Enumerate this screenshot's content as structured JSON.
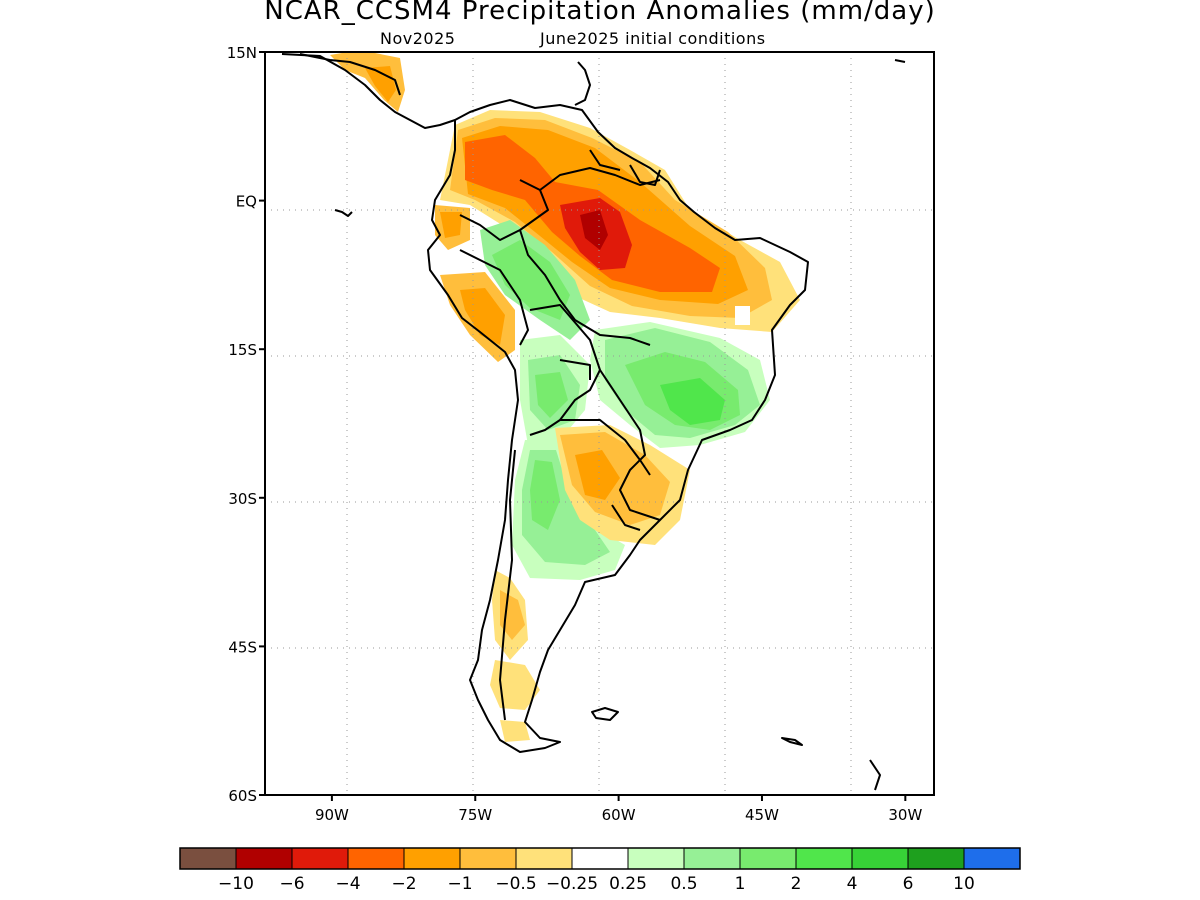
{
  "title": "NCAR_CCSM4 Precipitation Anomalies (mm/day)",
  "subtitle_left": "Nov2025",
  "subtitle_right": "June2025 initial conditions",
  "map_extent": {
    "lon": [
      -97,
      -27
    ],
    "lat": [
      -60,
      15
    ]
  },
  "lat_ticks": [
    {
      "label": "15N",
      "lat": 15
    },
    {
      "label": "EQ",
      "lat": 0
    },
    {
      "label": "15S",
      "lat": -15
    },
    {
      "label": "30S",
      "lat": -30
    },
    {
      "label": "45S",
      "lat": -45
    },
    {
      "label": "60S",
      "lat": -60
    }
  ],
  "lon_ticks": [
    {
      "label": "90W",
      "lon": -90
    },
    {
      "label": "75W",
      "lon": -75
    },
    {
      "label": "60W",
      "lon": -60
    },
    {
      "label": "45W",
      "lon": -45
    },
    {
      "label": "30W",
      "lon": -30
    }
  ],
  "legend": {
    "colors": [
      "#7a4f3f",
      "#b00000",
      "#e01a0a",
      "#ff6400",
      "#ffa000",
      "#ffbe3c",
      "#ffe17a",
      "#ffffff",
      "#c8ffbe",
      "#96f096",
      "#78eb6e",
      "#50e64b",
      "#37d237",
      "#1ea01e",
      "#1e6eeb"
    ],
    "labels": [
      "−10",
      "−6",
      "−4",
      "−2",
      "−1",
      "−0.5",
      "−0.25",
      "0.25",
      "0.5",
      "1",
      "2",
      "4",
      "6",
      "10"
    ]
  }
}
